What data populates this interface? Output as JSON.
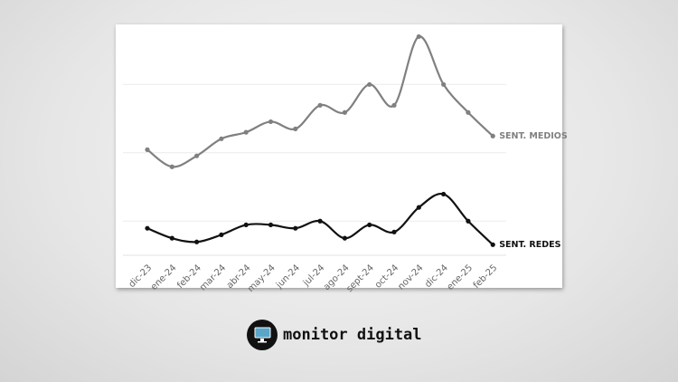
{
  "chart_data": {
    "type": "line",
    "categories": [
      "dic-23",
      "ene-24",
      "feb-24",
      "mar-24",
      "abr-24",
      "may-24",
      "jun-24",
      "jul-24",
      "ago-24",
      "sept-24",
      "oct-24",
      "nov-24",
      "dic-24",
      "ene-25",
      "feb-25"
    ],
    "series": [
      {
        "name": "SENT. MEDIOS",
        "color": "#808080",
        "values": [
          40.9,
          35.9,
          39.1,
          44.1,
          46.0,
          49.1,
          47.0,
          53.9,
          51.8,
          60,
          53.9,
          74.0,
          60,
          51.8,
          44.9
        ]
      },
      {
        "name": "SENT. REDES",
        "color": "#111111",
        "values": [
          17.9,
          15.0,
          13.9,
          16.0,
          18.9,
          18.9,
          17.9,
          20,
          15.0,
          18.9,
          16.8,
          24.0,
          27.9,
          20,
          13.1
        ]
      }
    ],
    "ylim": [
      10,
      76
    ],
    "yticks": [
      20,
      40,
      60
    ],
    "grid": true
  },
  "footer": {
    "brand": "monitor digital"
  }
}
